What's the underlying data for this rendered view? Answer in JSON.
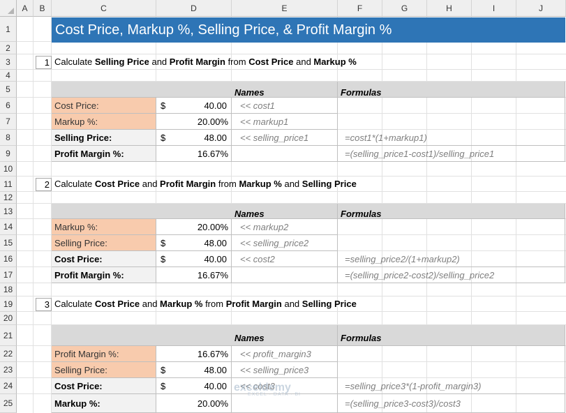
{
  "columns": [
    "A",
    "B",
    "C",
    "D",
    "E",
    "F",
    "G",
    "H",
    "I",
    "J"
  ],
  "rows": [
    "1",
    "2",
    "3",
    "4",
    "5",
    "6",
    "7",
    "8",
    "9",
    "10",
    "11",
    "12",
    "13",
    "14",
    "15",
    "16",
    "17",
    "18",
    "19",
    "20",
    "21",
    "22",
    "23",
    "24",
    "25"
  ],
  "title": "Cost Price, Markup %, Selling Price, & Profit Margin %",
  "headers": {
    "names": "Names",
    "formulas": "Formulas"
  },
  "currency": "$",
  "sections": [
    {
      "num": "1",
      "heading": [
        {
          "t": "Calculate ",
          "b": false
        },
        {
          "t": "Selling Price",
          "b": true
        },
        {
          "t": " and ",
          "b": false
        },
        {
          "t": "Profit Margin",
          "b": true
        },
        {
          "t": " from ",
          "b": false
        },
        {
          "t": "Cost Price",
          "b": true
        },
        {
          "t": " and ",
          "b": false
        },
        {
          "t": "Markup %",
          "b": true
        }
      ],
      "rows": [
        {
          "label": "Cost Price:",
          "input": true,
          "dollar": true,
          "value": "40.00",
          "name": "<< cost1",
          "formula": ""
        },
        {
          "label": "Markup %:",
          "input": true,
          "dollar": false,
          "value": "20.00%",
          "name": "<< markup1",
          "formula": ""
        },
        {
          "label": "Selling Price:",
          "input": false,
          "dollar": true,
          "value": "48.00",
          "name": "<< selling_price1",
          "formula": "=cost1*(1+markup1)"
        },
        {
          "label": "Profit Margin %:",
          "input": false,
          "dollar": false,
          "value": "16.67%",
          "name": "",
          "formula": "=(selling_price1-cost1)/selling_price1"
        }
      ]
    },
    {
      "num": "2",
      "heading": [
        {
          "t": "Calculate ",
          "b": false
        },
        {
          "t": "Cost Price",
          "b": true
        },
        {
          "t": " and ",
          "b": false
        },
        {
          "t": "Profit Margin",
          "b": true
        },
        {
          "t": " from ",
          "b": false
        },
        {
          "t": "Markup %",
          "b": true
        },
        {
          "t": " and ",
          "b": false
        },
        {
          "t": "Selling Price",
          "b": true
        }
      ],
      "rows": [
        {
          "label": "Markup %:",
          "input": true,
          "dollar": false,
          "value": "20.00%",
          "name": "<< markup2",
          "formula": ""
        },
        {
          "label": "Selling Price:",
          "input": true,
          "dollar": true,
          "value": "48.00",
          "name": "<< selling_price2",
          "formula": ""
        },
        {
          "label": "Cost Price:",
          "input": false,
          "dollar": true,
          "value": "40.00",
          "name": "<< cost2",
          "formula": "=selling_price2/(1+markup2)"
        },
        {
          "label": "Profit Margin %:",
          "input": false,
          "dollar": false,
          "value": "16.67%",
          "name": "",
          "formula": "=(selling_price2-cost2)/selling_price2"
        }
      ]
    },
    {
      "num": "3",
      "heading": [
        {
          "t": "Calculate ",
          "b": false
        },
        {
          "t": "Cost Price",
          "b": true
        },
        {
          "t": " and ",
          "b": false
        },
        {
          "t": "Markup %",
          "b": true
        },
        {
          "t": " from ",
          "b": false
        },
        {
          "t": "Profit Margin",
          "b": true
        },
        {
          "t": " and ",
          "b": false
        },
        {
          "t": "Selling Price",
          "b": true
        }
      ],
      "rows": [
        {
          "label": "Profit Margin %:",
          "input": true,
          "dollar": false,
          "value": "16.67%",
          "name": "<< profit_margin3",
          "formula": ""
        },
        {
          "label": "Selling Price:",
          "input": true,
          "dollar": true,
          "value": "48.00",
          "name": "<< selling_price3",
          "formula": ""
        },
        {
          "label": "Cost Price:",
          "input": false,
          "dollar": true,
          "value": "40.00",
          "name": "<< cost3",
          "formula": "=selling_price3*(1-profit_margin3)"
        },
        {
          "label": "Markup %:",
          "input": false,
          "dollar": false,
          "value": "20.00%",
          "name": "",
          "formula": "=(selling_price3-cost3)/cost3"
        }
      ]
    }
  ],
  "watermark": {
    "brand": "exceldemy",
    "tagline": "EXCEL · DATA · BI"
  }
}
